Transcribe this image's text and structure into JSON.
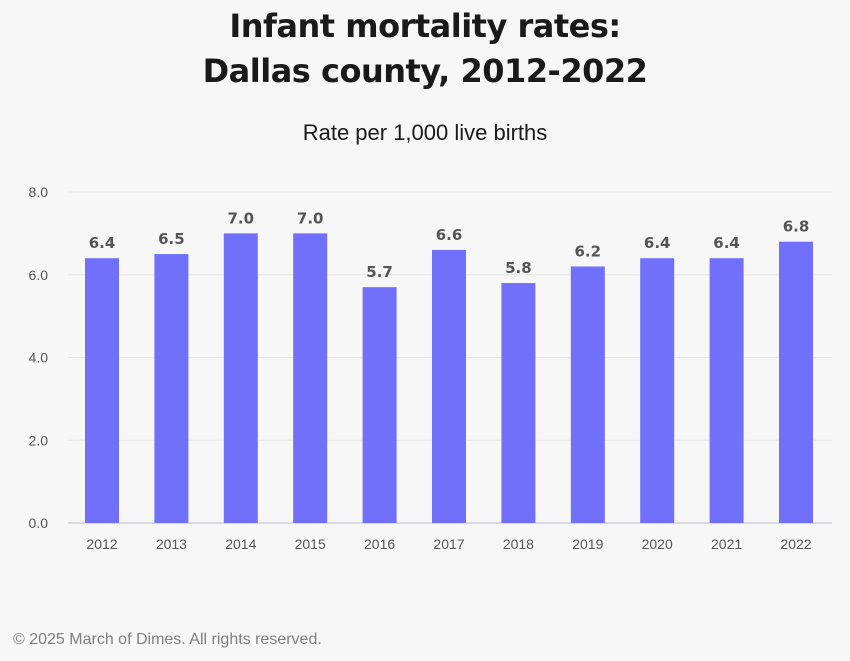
{
  "header": {
    "title_line1": "Infant mortality rates:",
    "title_line2": "Dallas county, 2012-2022"
  },
  "chart_data": {
    "type": "bar",
    "title": "Infant mortality rates: Dallas county, 2012-2022",
    "subtitle": "Rate per 1,000 live births",
    "categories": [
      "2012",
      "2013",
      "2014",
      "2015",
      "2016",
      "2017",
      "2018",
      "2019",
      "2020",
      "2021",
      "2022"
    ],
    "values": [
      6.4,
      6.5,
      7.0,
      7.0,
      5.7,
      6.6,
      5.8,
      6.2,
      6.4,
      6.4,
      6.8
    ],
    "value_labels": [
      "6.4",
      "6.5",
      "7.0",
      "7.0",
      "5.7",
      "6.6",
      "5.8",
      "6.2",
      "6.4",
      "6.4",
      "6.8"
    ],
    "yticks": [
      "0.0",
      "2.0",
      "4.0",
      "6.0",
      "8.0"
    ],
    "ylim": [
      0,
      8
    ],
    "xlabel": "",
    "ylabel": "",
    "grid": true,
    "bar_color": "#7070fb"
  },
  "footer": {
    "copyright": "© 2025 March of Dimes. All rights reserved."
  }
}
